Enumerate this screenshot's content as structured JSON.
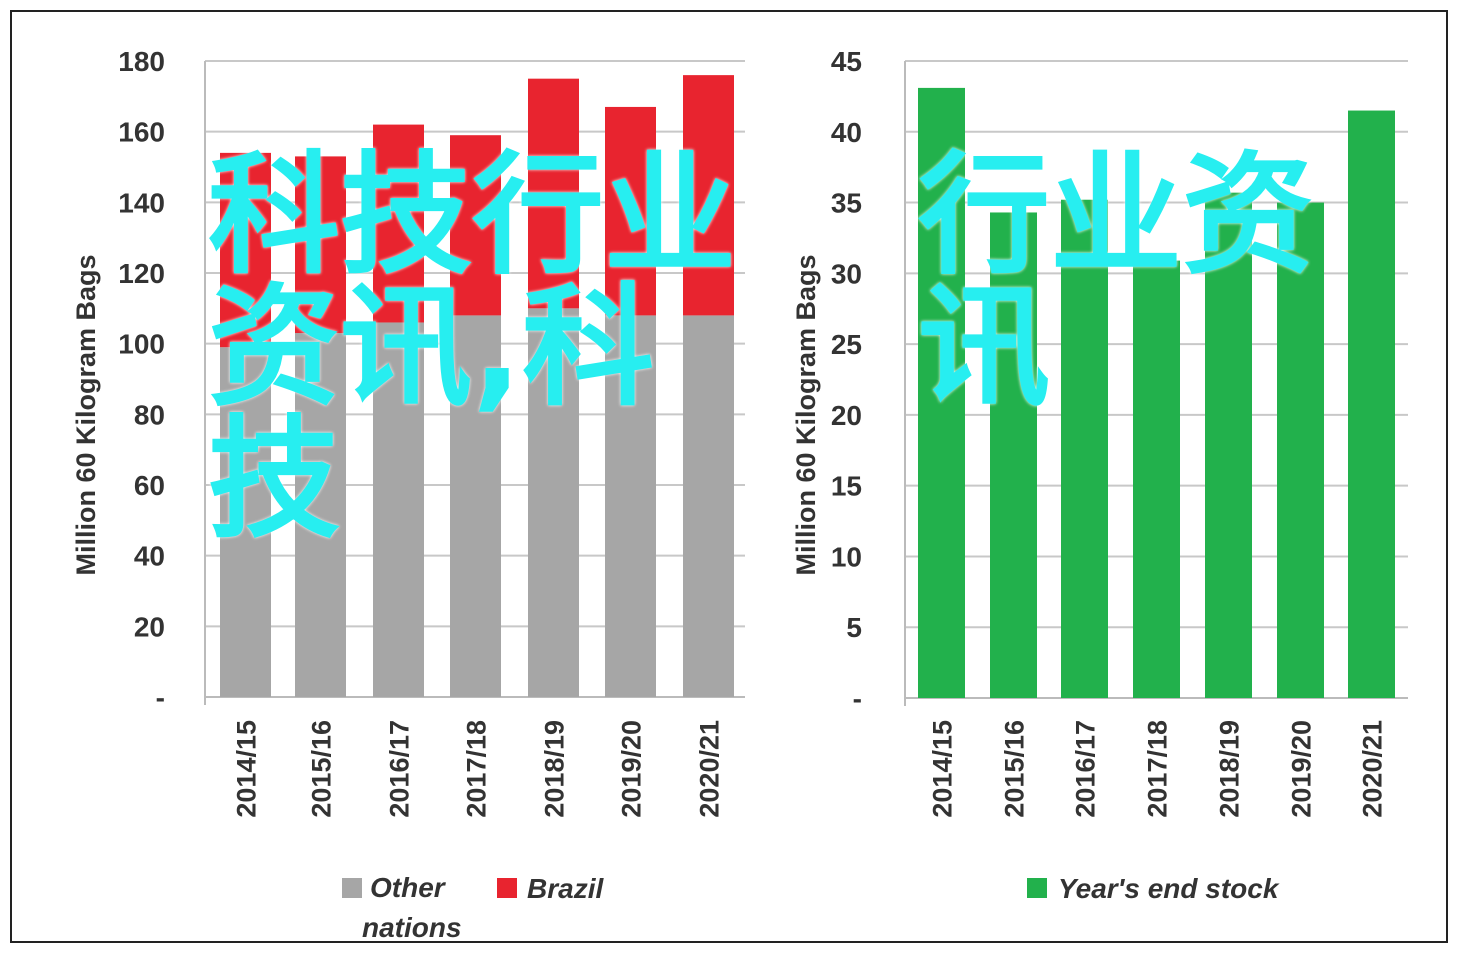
{
  "chart_data": [
    {
      "type": "bar",
      "stacked": true,
      "categories": [
        "2014/15",
        "2015/16",
        "2016/17",
        "2017/18",
        "2018/19",
        "2019/20",
        "2020/21"
      ],
      "series": [
        {
          "name": "Other nations",
          "color": "#a6a6a6",
          "values": [
            99,
            103,
            106,
            108,
            110,
            108,
            108
          ]
        },
        {
          "name": "Brazil",
          "color": "#e8242f",
          "values": [
            55,
            50,
            56,
            51,
            65,
            59,
            68
          ]
        }
      ],
      "ylabel": "Million 60 Kilogram Bags",
      "ylim": [
        0,
        180
      ],
      "yticks": [
        "-",
        "20",
        "40",
        "60",
        "80",
        "100",
        "120",
        "140",
        "160",
        "180"
      ],
      "legend_labels": [
        "Other",
        "nations",
        "Brazil"
      ],
      "legend": "bottom",
      "grid": true
    },
    {
      "type": "bar",
      "categories": [
        "2014/15",
        "2015/16",
        "2016/17",
        "2017/18",
        "2018/19",
        "2019/20",
        "2020/21"
      ],
      "series": [
        {
          "name": "Year's end stock",
          "color": "#22b14c",
          "values": [
            43.1,
            34.3,
            35.2,
            30.9,
            35.7,
            35.0,
            41.5
          ]
        }
      ],
      "ylabel": "Million 60 Kilogram Bags",
      "ylim": [
        0,
        45
      ],
      "yticks": [
        "-",
        "5",
        "10",
        "15",
        "20",
        "25",
        "30",
        "35",
        "40",
        "45"
      ],
      "legend_labels": [
        "Year's end stock"
      ],
      "legend": "bottom",
      "grid": true
    }
  ],
  "overlay": {
    "line1": "科技行业资讯,科技",
    "line2": "行业资讯"
  }
}
